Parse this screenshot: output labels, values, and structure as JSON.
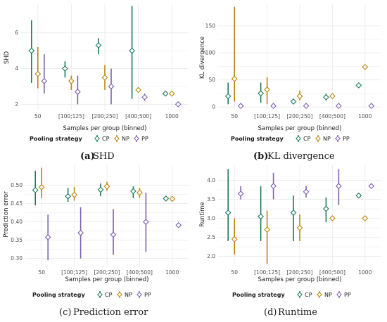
{
  "colors": {
    "CP": "#1b7a5f",
    "NP": "#b8860b",
    "PP": "#7b61b3",
    "grid": "#ebebeb"
  },
  "chart_data": [
    {
      "id": "a",
      "type": "scatter",
      "caption_letter": "(a)",
      "caption_text": "SHD",
      "xlabel": "Samples per group (binned)",
      "ylabel": "SHD",
      "categories": [
        "50",
        "[100;125]",
        "[200;250]",
        "[400;500]",
        "1000"
      ],
      "ylim": [
        1.7,
        7.6
      ],
      "yticks": [
        2,
        4,
        6
      ],
      "series": [
        {
          "name": "CP",
          "values": [
            5.0,
            4.0,
            5.3,
            5.0,
            2.6
          ],
          "lower": [
            3.2,
            3.5,
            4.8,
            2.3,
            2.6
          ],
          "upper": [
            6.7,
            4.4,
            5.7,
            7.5,
            2.6
          ]
        },
        {
          "name": "NP",
          "values": [
            3.7,
            3.3,
            3.5,
            2.8,
            2.6
          ],
          "lower": [
            2.9,
            2.8,
            2.8,
            2.8,
            2.6
          ],
          "upper": [
            5.2,
            3.6,
            4.2,
            2.8,
            2.6
          ]
        },
        {
          "name": "PP",
          "values": [
            3.3,
            2.7,
            3.0,
            2.4,
            2.0
          ],
          "lower": [
            2.6,
            2.0,
            2.0,
            2.2,
            2.0
          ],
          "upper": [
            4.8,
            3.6,
            4.0,
            2.6,
            2.0
          ]
        }
      ]
    },
    {
      "id": "b",
      "type": "scatter",
      "caption_letter": "(b)",
      "caption_text": "KL divergence",
      "xlabel": "Samples per group (binned)",
      "ylabel": "KL divergence",
      "categories": [
        "50",
        "[100;125]",
        "[200;250]",
        "[400;500]",
        "1000"
      ],
      "ylim": [
        -5,
        190
      ],
      "yticks": [
        0,
        50,
        100,
        150
      ],
      "series": [
        {
          "name": "CP",
          "values": [
            20,
            25,
            10,
            18,
            40
          ],
          "lower": [
            5,
            8,
            5,
            12,
            40
          ],
          "upper": [
            45,
            45,
            15,
            25,
            40
          ]
        },
        {
          "name": "NP",
          "values": [
            52,
            32,
            20,
            20,
            74
          ],
          "lower": [
            10,
            5,
            12,
            20,
            74
          ],
          "upper": [
            185,
            55,
            30,
            20,
            74
          ]
        },
        {
          "name": "PP",
          "values": [
            2,
            2,
            2,
            2,
            2
          ],
          "lower": [
            1,
            1,
            1,
            1,
            2
          ],
          "upper": [
            3,
            3,
            3,
            3,
            2
          ]
        }
      ]
    },
    {
      "id": "c",
      "type": "scatter",
      "caption_letter": "(c)",
      "caption_text": "Prediction error",
      "xlabel": "Samples per group (binned)",
      "ylabel": "Prediction error",
      "categories": [
        "50",
        "[100;125]",
        "[200;250]",
        "[400;500]",
        "1000"
      ],
      "ylim": [
        0.28,
        0.555
      ],
      "yticks": [
        0.3,
        0.35,
        0.4,
        0.45,
        0.5
      ],
      "series": [
        {
          "name": "CP",
          "values": [
            0.487,
            0.47,
            0.488,
            0.484,
            0.464
          ],
          "lower": [
            0.445,
            0.455,
            0.47,
            0.465,
            0.464
          ],
          "upper": [
            0.54,
            0.493,
            0.505,
            0.497,
            0.464
          ]
        },
        {
          "name": "NP",
          "values": [
            0.495,
            0.474,
            0.497,
            0.48,
            0.463
          ],
          "lower": [
            0.465,
            0.458,
            0.485,
            0.466,
            0.463
          ],
          "upper": [
            0.548,
            0.495,
            0.51,
            0.493,
            0.463
          ]
        },
        {
          "name": "PP",
          "values": [
            0.358,
            0.37,
            0.365,
            0.4,
            0.391
          ],
          "lower": [
            0.295,
            0.3,
            0.31,
            0.318,
            0.391
          ],
          "upper": [
            0.42,
            0.44,
            0.435,
            0.48,
            0.391
          ]
        }
      ]
    },
    {
      "id": "d",
      "type": "scatter",
      "caption_letter": "(d)",
      "caption_text": "Runtime",
      "xlabel": "Samples per group (binned)",
      "ylabel": "Runtime",
      "categories": [
        "50",
        "[100;125]",
        "[200;250]",
        "[400;500]",
        "1000"
      ],
      "ylim": [
        1.75,
        4.4
      ],
      "yticks": [
        2.0,
        2.5,
        3.0,
        3.5,
        4.0
      ],
      "series": [
        {
          "name": "CP",
          "values": [
            3.15,
            3.05,
            3.15,
            3.25,
            3.6
          ],
          "lower": [
            2.4,
            2.4,
            2.4,
            2.9,
            3.6
          ],
          "upper": [
            4.3,
            3.85,
            3.6,
            3.55,
            3.6
          ]
        },
        {
          "name": "NP",
          "values": [
            2.45,
            2.7,
            2.75,
            3.0,
            3.0
          ],
          "lower": [
            2.05,
            1.8,
            2.4,
            3.0,
            3.0
          ],
          "upper": [
            3.0,
            3.2,
            3.1,
            3.0,
            3.0
          ]
        },
        {
          "name": "PP",
          "values": [
            3.65,
            3.85,
            3.7,
            3.85,
            3.85
          ],
          "lower": [
            3.5,
            3.5,
            3.55,
            3.35,
            3.85
          ],
          "upper": [
            3.85,
            4.2,
            3.85,
            4.3,
            3.85
          ]
        }
      ]
    }
  ],
  "legend": {
    "title": "Pooling strategy",
    "items": [
      "CP",
      "NP",
      "PP"
    ]
  }
}
